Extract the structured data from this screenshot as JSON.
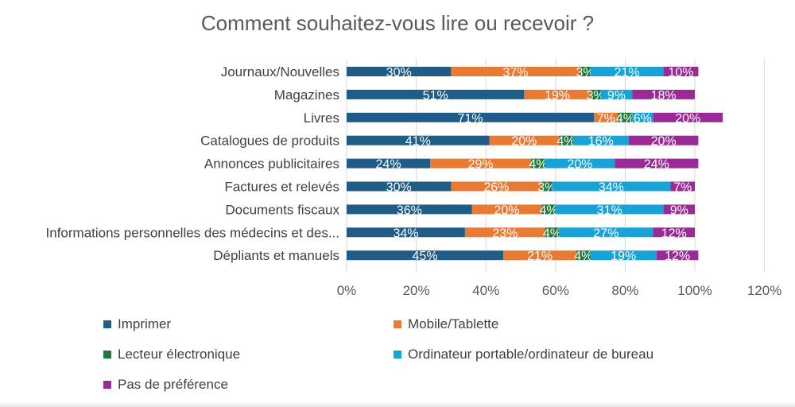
{
  "chart_data": {
    "type": "bar",
    "orientation": "horizontal",
    "stacked": true,
    "title": "Comment souhaitez-vous lire ou recevoir ?",
    "categories": [
      "Journaux/Nouvelles",
      "Magazines",
      "Livres",
      "Catalogues de produits",
      "Annonces publicitaires",
      "Factures et relevés",
      "Documents fiscaux",
      "Informations personnelles des médecins et des...",
      "Dépliants et manuels"
    ],
    "series": [
      {
        "name": "Imprimer",
        "color": "#1f5c87",
        "values": [
          30,
          51,
          71,
          41,
          24,
          30,
          36,
          34,
          45
        ]
      },
      {
        "name": "Mobile/Tablette",
        "color": "#e97a33",
        "values": [
          37,
          19,
          7,
          20,
          29,
          26,
          20,
          23,
          21
        ]
      },
      {
        "name": "Lecteur électronique",
        "color": "#1d7a3a",
        "values": [
          3,
          3,
          4,
          4,
          4,
          3,
          4,
          4,
          4
        ]
      },
      {
        "name": "Ordinateur portable/ordinateur de bureau",
        "color": "#17a2d8",
        "values": [
          21,
          9,
          6,
          16,
          20,
          34,
          31,
          27,
          19
        ]
      },
      {
        "name": "Pas de préférence",
        "color": "#9a2a96",
        "values": [
          10,
          18,
          20,
          20,
          24,
          7,
          9,
          12,
          12
        ]
      }
    ],
    "xlim": [
      0,
      120
    ],
    "xticks": [
      0,
      20,
      40,
      60,
      80,
      100,
      120
    ],
    "tick_suffix": "%",
    "grid": true,
    "legend_position": "bottom"
  }
}
